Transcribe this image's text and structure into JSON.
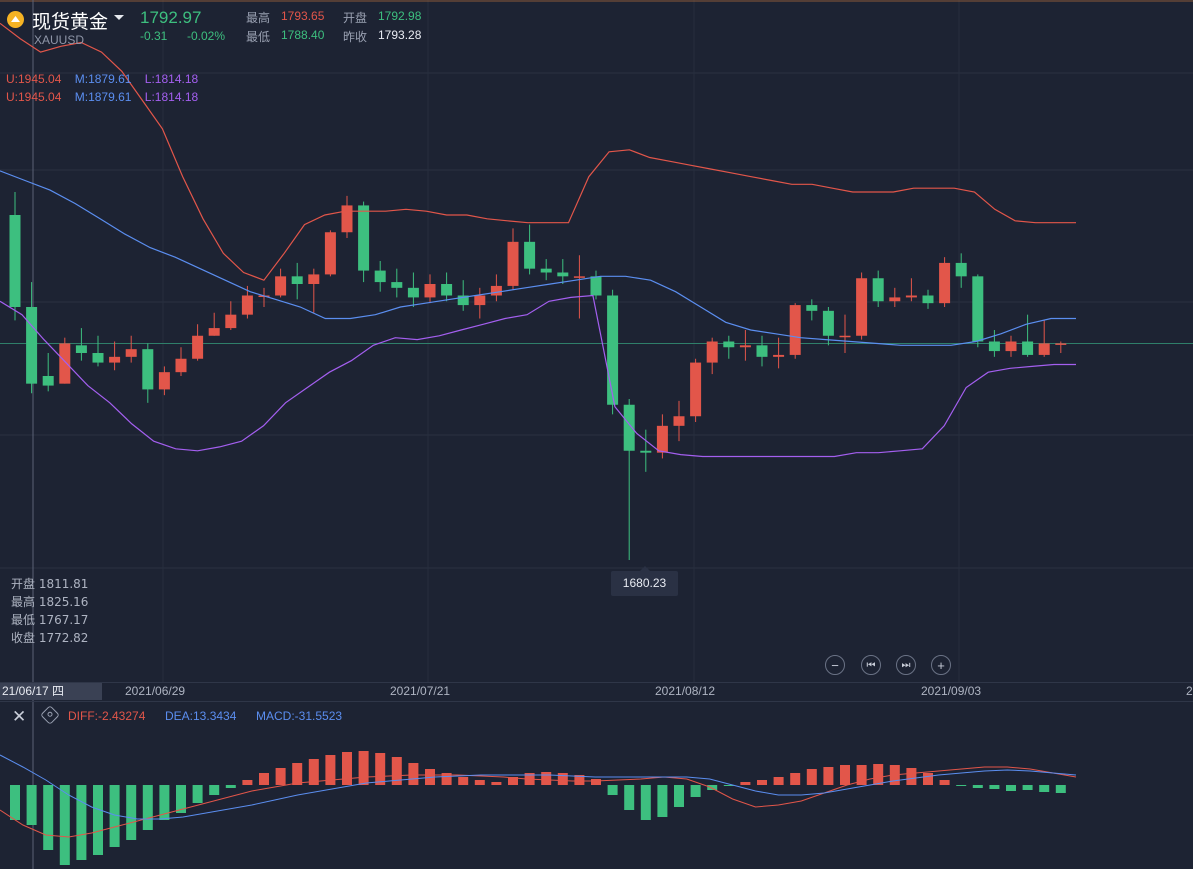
{
  "header": {
    "title": "现货黄金",
    "symbol": "XAUUSD",
    "price": "1792.97",
    "change": "-0.31",
    "change_pct": "-0.02%",
    "high_label": "最高",
    "high": "1793.65",
    "open_label": "开盘",
    "open": "1792.98",
    "low_label": "最低",
    "low": "1788.40",
    "prev_close_label": "昨收",
    "prev_close": "1793.28"
  },
  "boll": {
    "upper": "U:1945.04",
    "middle": "M:1879.61",
    "lower": "L:1814.18"
  },
  "cursor_info": {
    "open": "开盘 1811.81",
    "high": "最高 1825.16",
    "low": "最低 1767.17",
    "close": "收盘 1772.82"
  },
  "tooltip": "1680.23",
  "xaxis": {
    "current": "21/06/17 四",
    "labels": [
      "2021/06/29",
      "2021/07/21",
      "2021/08/12",
      "2021/09/03",
      "2"
    ]
  },
  "macd": {
    "diff": "DIFF:-2.43274",
    "dea": "DEA:13.3434",
    "macd": "MACD:-31.5523"
  },
  "controls": {
    "zoom_out": "−",
    "prev": "⏮",
    "next": "⏭",
    "zoom_in": "+"
  },
  "colors": {
    "up": "#e2564a",
    "down": "#3dbf7f",
    "mid": "#5b8ef0",
    "lower_band": "#a45ff0",
    "background": "#1d2333"
  },
  "chart_data": {
    "type": "candlestick",
    "candles": [
      [
        1860,
        1812,
        1872,
        1805
      ],
      [
        1812,
        1772,
        1825,
        1767
      ],
      [
        1776,
        1771,
        1788,
        1768
      ],
      [
        1772,
        1793,
        1796,
        1772
      ],
      [
        1792,
        1788,
        1801,
        1784
      ],
      [
        1788,
        1783,
        1797,
        1781
      ],
      [
        1783,
        1786,
        1794,
        1779
      ],
      [
        1786,
        1790,
        1797,
        1783
      ],
      [
        1790,
        1769,
        1793,
        1762
      ],
      [
        1769,
        1778,
        1781,
        1766
      ],
      [
        1778,
        1785,
        1791,
        1776
      ],
      [
        1785,
        1797,
        1803,
        1784
      ],
      [
        1797,
        1801,
        1809,
        1797
      ],
      [
        1801,
        1808,
        1815,
        1800
      ],
      [
        1808,
        1818,
        1823,
        1806
      ],
      [
        1818,
        1818,
        1822,
        1812
      ],
      [
        1818,
        1828,
        1832,
        1817
      ],
      [
        1828,
        1824,
        1835,
        1816
      ],
      [
        1824,
        1829,
        1832,
        1809
      ],
      [
        1829,
        1851,
        1852,
        1828
      ],
      [
        1851,
        1865,
        1870,
        1848
      ],
      [
        1865,
        1831,
        1867,
        1825
      ],
      [
        1831,
        1825,
        1836,
        1820
      ],
      [
        1825,
        1822,
        1832,
        1817
      ],
      [
        1822,
        1817,
        1830,
        1812
      ],
      [
        1817,
        1824,
        1829,
        1814
      ],
      [
        1824,
        1818,
        1830,
        1815
      ],
      [
        1818,
        1813,
        1826,
        1810
      ],
      [
        1813,
        1818,
        1822,
        1806
      ],
      [
        1818,
        1823,
        1829,
        1815
      ],
      [
        1823,
        1846,
        1853,
        1821
      ],
      [
        1846,
        1832,
        1855,
        1829
      ],
      [
        1832,
        1830,
        1837,
        1826
      ],
      [
        1830,
        1828,
        1837,
        1824
      ],
      [
        1828,
        1828,
        1839,
        1806
      ],
      [
        1828,
        1818,
        1831,
        1816
      ],
      [
        1818,
        1761,
        1821,
        1756
      ],
      [
        1761,
        1737,
        1764,
        1680
      ],
      [
        1737,
        1736,
        1748,
        1726
      ],
      [
        1736,
        1750,
        1756,
        1733
      ],
      [
        1750,
        1755,
        1763,
        1742
      ],
      [
        1755,
        1783,
        1785,
        1752
      ],
      [
        1783,
        1794,
        1796,
        1777
      ],
      [
        1794,
        1791,
        1797,
        1785
      ],
      [
        1791,
        1792,
        1800,
        1784
      ],
      [
        1792,
        1786,
        1797,
        1781
      ],
      [
        1786,
        1787,
        1796,
        1780
      ],
      [
        1787,
        1813,
        1814,
        1785
      ],
      [
        1813,
        1810,
        1816,
        1805
      ],
      [
        1810,
        1797,
        1812,
        1792
      ],
      [
        1797,
        1797,
        1808,
        1788
      ],
      [
        1797,
        1827,
        1830,
        1795
      ],
      [
        1827,
        1815,
        1831,
        1812
      ],
      [
        1815,
        1817,
        1822,
        1812
      ],
      [
        1817,
        1818,
        1827,
        1815
      ],
      [
        1818,
        1814,
        1821,
        1811
      ],
      [
        1814,
        1835,
        1838,
        1812
      ],
      [
        1835,
        1828,
        1840,
        1822
      ],
      [
        1828,
        1794,
        1829,
        1791
      ],
      [
        1794,
        1789,
        1800,
        1786
      ],
      [
        1789,
        1794,
        1797,
        1786
      ],
      [
        1794,
        1787,
        1808,
        1786
      ],
      [
        1787,
        1793,
        1805,
        1786
      ],
      [
        1793,
        1793,
        1794,
        1788
      ]
    ],
    "boll_upper": [
      1960,
      1952,
      1945,
      1948,
      1950,
      1945,
      1935,
      1920,
      1905,
      1880,
      1858,
      1840,
      1830,
      1826,
      1840,
      1855,
      1860,
      1862,
      1862,
      1862,
      1863,
      1862,
      1860,
      1860,
      1858,
      1857,
      1856,
      1856,
      1856,
      1880,
      1893,
      1894,
      1890,
      1888,
      1886,
      1884,
      1882,
      1880,
      1878,
      1876,
      1876,
      1874,
      1872,
      1872,
      1872,
      1874,
      1874,
      1874,
      1872,
      1863,
      1857,
      1856,
      1856,
      1856
    ],
    "boll_mid": [
      1883,
      1878,
      1873,
      1866,
      1858,
      1850,
      1843,
      1838,
      1832,
      1826,
      1820,
      1816,
      1812,
      1806,
      1806,
      1808,
      1812,
      1814,
      1816,
      1818,
      1820,
      1822,
      1824,
      1826,
      1828,
      1828,
      1826,
      1820,
      1812,
      1804,
      1800,
      1798,
      1796,
      1795,
      1794,
      1793,
      1792,
      1792,
      1792,
      1794,
      1798,
      1803,
      1806,
      1806
    ],
    "boll_lower": [
      1815,
      1808,
      1795,
      1783,
      1771,
      1762,
      1751,
      1742,
      1738,
      1737,
      1739,
      1742,
      1750,
      1762,
      1770,
      1778,
      1784,
      1792,
      1796,
      1795,
      1797,
      1800,
      1803,
      1806,
      1808,
      1815,
      1817,
      1818,
      1760,
      1746,
      1737,
      1735,
      1734,
      1734,
      1734,
      1734,
      1734,
      1734,
      1734,
      1736,
      1736,
      1737,
      1738,
      1750,
      1770,
      1778,
      1780,
      1781,
      1782,
      1782
    ]
  }
}
